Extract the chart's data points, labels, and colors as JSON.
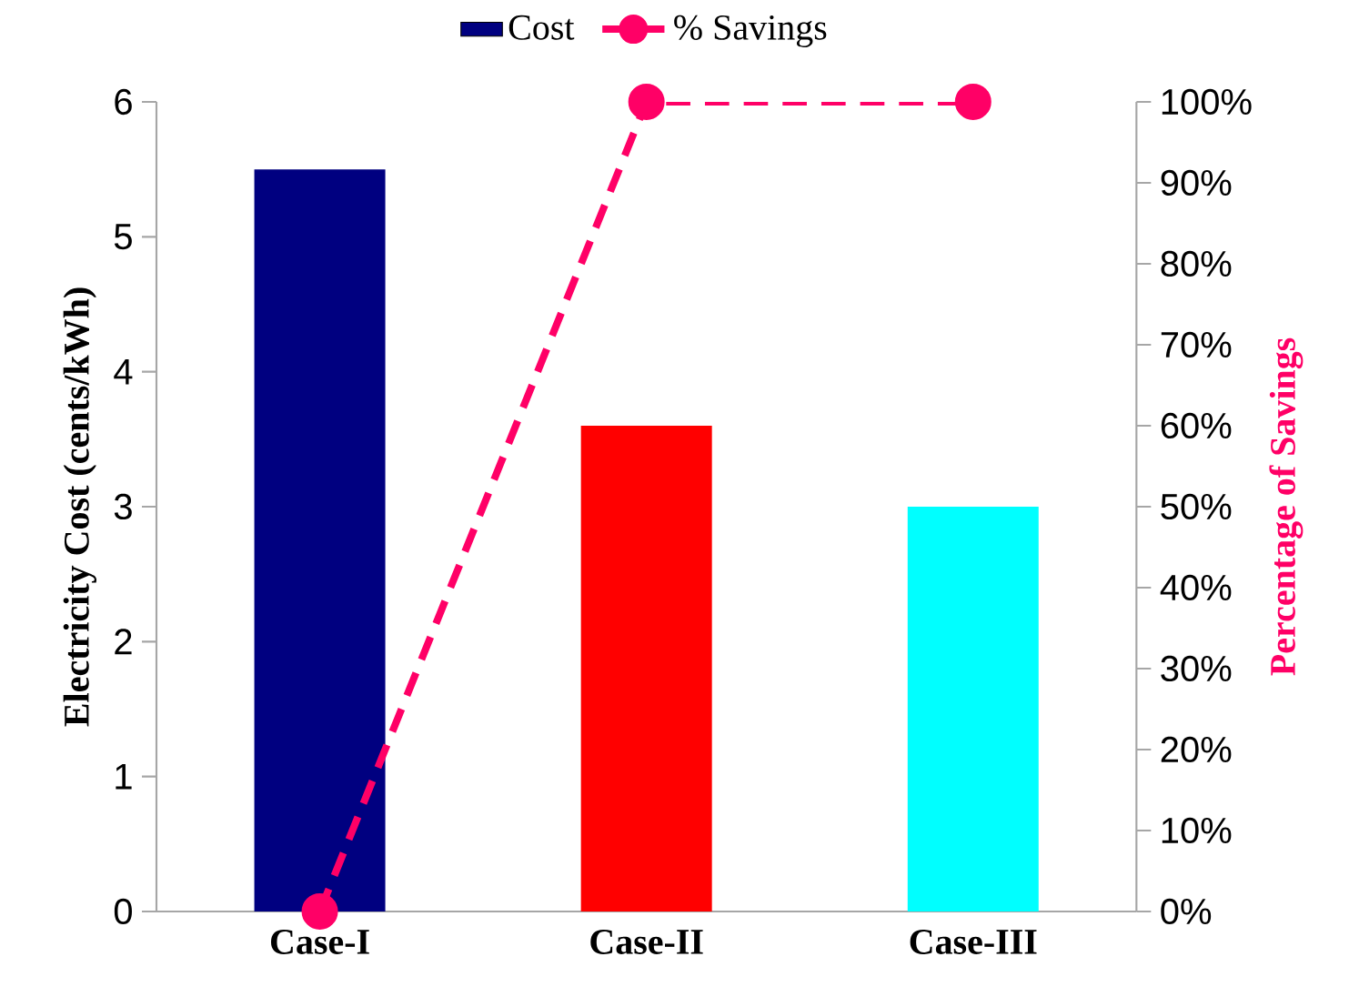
{
  "chart_data": {
    "type": "bar",
    "ylabel": "Electricity Cost (cents/kWh)",
    "y2label": "Percentage of Savings",
    "categories": [
      "Case-I",
      "Case-II",
      "Case-III"
    ],
    "series": [
      {
        "name": "Cost",
        "colors": [
          "#000080",
          "#ff0000",
          "#00ffff"
        ],
        "values": [
          5.5,
          3.6,
          3.0
        ]
      },
      {
        "name": "% Savings",
        "type": "line",
        "axis": "y2",
        "color": "#ff0066",
        "values": [
          0,
          100,
          100
        ]
      }
    ],
    "ylim": [
      0,
      6
    ],
    "yticks": [
      0,
      1,
      2,
      3,
      4,
      5,
      6
    ],
    "y2lim": [
      0,
      100
    ],
    "y2ticks": [
      {
        "value": 0,
        "label": "0%"
      },
      {
        "value": 10,
        "label": "10%"
      },
      {
        "value": 20,
        "label": "20%"
      },
      {
        "value": 30,
        "label": "30%"
      },
      {
        "value": 40,
        "label": "40%"
      },
      {
        "value": 50,
        "label": "50%"
      },
      {
        "value": 60,
        "label": "60%"
      },
      {
        "value": 70,
        "label": "70%"
      },
      {
        "value": 80,
        "label": "80%"
      },
      {
        "value": 90,
        "label": "90%"
      },
      {
        "value": 100,
        "label": "100%"
      }
    ],
    "legend": "top",
    "marker": "circle",
    "line_style": "dashed",
    "grid": false
  }
}
